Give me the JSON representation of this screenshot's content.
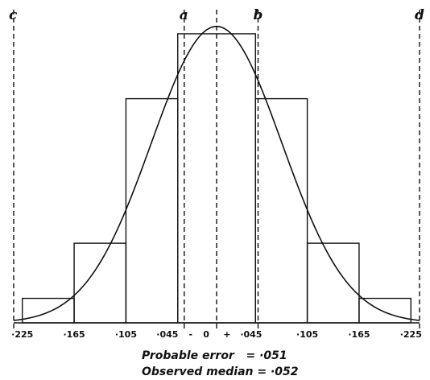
{
  "chart_data": {
    "type": "bar",
    "title": "",
    "xlabel": "",
    "ylabel": "",
    "bins": [
      {
        "from": -0.225,
        "to": -0.165,
        "height": 1
      },
      {
        "from": -0.165,
        "to": -0.105,
        "height": 3.25
      },
      {
        "from": -0.105,
        "to": -0.045,
        "height": 9.15
      },
      {
        "from": -0.045,
        "to": 0.045,
        "height": 11.8
      },
      {
        "from": 0.045,
        "to": 0.105,
        "height": 9.15
      },
      {
        "from": 0.105,
        "to": 0.165,
        "height": 3.25
      },
      {
        "from": 0.165,
        "to": 0.225,
        "height": 1
      }
    ],
    "curve": {
      "type": "normal",
      "peak": 12.1,
      "probable_error": 0.051
    },
    "xlim": [
      -0.235,
      0.235
    ],
    "ylim": [
      0,
      12.85
    ],
    "vlines": [
      {
        "label": "c",
        "x": -0.235
      },
      {
        "label": "a",
        "x": -0.0375
      },
      {
        "label": "",
        "x": 0
      },
      {
        "label": "b",
        "x": 0.048
      },
      {
        "label": "d",
        "x": 0.235
      }
    ],
    "ticks": [
      {
        "x": -0.225,
        "label": "·225"
      },
      {
        "x": -0.165,
        "label": "·165"
      },
      {
        "x": -0.105,
        "label": "·105"
      },
      {
        "x": -0.057,
        "label": "·045"
      },
      {
        "x": -0.03,
        "label": "-"
      },
      {
        "x": -0.012,
        "label": "0"
      },
      {
        "x": 0.012,
        "label": "+"
      },
      {
        "x": 0.04,
        "label": "·045"
      },
      {
        "x": 0.105,
        "label": "·105"
      },
      {
        "x": 0.165,
        "label": "·165"
      },
      {
        "x": 0.225,
        "label": "·225"
      }
    ],
    "annotations": {
      "probable_error": "Probable error   = ·051",
      "observed_median": "Observed median = ·052"
    }
  }
}
